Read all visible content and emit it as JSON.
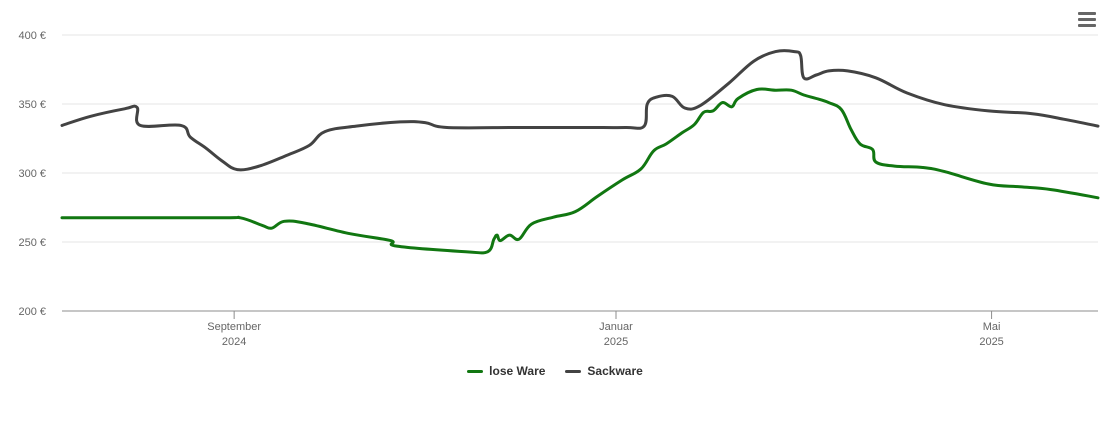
{
  "chart_data": {
    "type": "line",
    "y_unit": "€",
    "ylim": [
      200,
      400
    ],
    "y_ticks": [
      {
        "value": 400,
        "label": "400 €"
      },
      {
        "value": 350,
        "label": "350 €"
      },
      {
        "value": 300,
        "label": "300 €"
      },
      {
        "value": 250,
        "label": "250 €"
      },
      {
        "value": 200,
        "label": "200 €"
      }
    ],
    "x_range": [
      "2024-07-08",
      "2025-06-04"
    ],
    "x_ticks": [
      {
        "date": "2024-09-01",
        "line1": "September",
        "line2": "2024"
      },
      {
        "date": "2025-01-01",
        "line1": "Januar",
        "line2": "2025"
      },
      {
        "date": "2025-05-01",
        "line1": "Mai",
        "line2": "2025"
      }
    ],
    "grid": true,
    "legend_position": "bottom-center",
    "series": [
      {
        "name": "lose Ware",
        "color": "#117711",
        "points": [
          [
            "2024-07-08",
            267.5
          ],
          [
            "2024-08-27",
            267.5
          ],
          [
            "2024-09-03",
            267.5
          ],
          [
            "2024-09-10",
            262
          ],
          [
            "2024-09-13",
            260
          ],
          [
            "2024-09-17",
            265
          ],
          [
            "2024-09-24",
            263.5
          ],
          [
            "2024-10-08",
            256
          ],
          [
            "2024-10-21",
            251
          ],
          [
            "2024-10-23",
            247
          ],
          [
            "2024-11-14",
            243
          ],
          [
            "2024-11-21",
            243
          ],
          [
            "2024-11-23",
            252
          ],
          [
            "2024-11-24",
            255
          ],
          [
            "2024-11-25",
            251
          ],
          [
            "2024-11-28",
            255
          ],
          [
            "2024-12-01",
            252
          ],
          [
            "2024-12-05",
            263
          ],
          [
            "2024-12-12",
            268
          ],
          [
            "2024-12-19",
            272
          ],
          [
            "2024-12-26",
            283
          ],
          [
            "2025-01-03",
            295
          ],
          [
            "2025-01-09",
            303
          ],
          [
            "2025-01-13",
            316
          ],
          [
            "2025-01-17",
            321
          ],
          [
            "2025-01-22",
            329
          ],
          [
            "2025-01-26",
            335
          ],
          [
            "2025-01-29",
            344
          ],
          [
            "2025-02-01",
            345
          ],
          [
            "2025-02-04",
            351
          ],
          [
            "2025-02-07",
            348
          ],
          [
            "2025-02-09",
            354
          ],
          [
            "2025-02-15",
            360.5
          ],
          [
            "2025-02-21",
            360
          ],
          [
            "2025-02-26",
            360
          ],
          [
            "2025-03-02",
            356.5
          ],
          [
            "2025-03-06",
            354
          ],
          [
            "2025-03-10",
            351
          ],
          [
            "2025-03-14",
            346
          ],
          [
            "2025-03-17",
            332
          ],
          [
            "2025-03-20",
            321
          ],
          [
            "2025-03-24",
            317
          ],
          [
            "2025-03-25",
            308
          ],
          [
            "2025-03-31",
            305
          ],
          [
            "2025-04-09",
            304
          ],
          [
            "2025-04-16",
            301
          ],
          [
            "2025-04-30",
            292
          ],
          [
            "2025-05-10",
            290
          ],
          [
            "2025-05-20",
            288
          ],
          [
            "2025-06-04",
            282
          ]
        ]
      },
      {
        "name": "Sackware",
        "color": "#434343",
        "points": [
          [
            "2024-07-08",
            334.5
          ],
          [
            "2024-07-17",
            341
          ],
          [
            "2024-07-28",
            346.5
          ],
          [
            "2024-08-01",
            347.5
          ],
          [
            "2024-08-02",
            334.5
          ],
          [
            "2024-08-15",
            334.5
          ],
          [
            "2024-08-18",
            326
          ],
          [
            "2024-08-23",
            318
          ],
          [
            "2024-08-28",
            309
          ],
          [
            "2024-09-02",
            302.5
          ],
          [
            "2024-09-09",
            305
          ],
          [
            "2024-09-18",
            313
          ],
          [
            "2024-09-25",
            320
          ],
          [
            "2024-09-30",
            330
          ],
          [
            "2024-10-10",
            334
          ],
          [
            "2024-10-24",
            337
          ],
          [
            "2024-11-01",
            336.5
          ],
          [
            "2024-11-08",
            333
          ],
          [
            "2024-12-01",
            333
          ],
          [
            "2024-12-22",
            333
          ],
          [
            "2025-01-04",
            333
          ],
          [
            "2025-01-10",
            334
          ],
          [
            "2025-01-11",
            350
          ],
          [
            "2025-01-14",
            355
          ],
          [
            "2025-01-19",
            355.5
          ],
          [
            "2025-01-23",
            347
          ],
          [
            "2025-01-28",
            349
          ],
          [
            "2025-02-06",
            365
          ],
          [
            "2025-02-14",
            381
          ],
          [
            "2025-02-21",
            388
          ],
          [
            "2025-02-27",
            388
          ],
          [
            "2025-03-01",
            385
          ],
          [
            "2025-03-02",
            369
          ],
          [
            "2025-03-06",
            371
          ],
          [
            "2025-03-10",
            374
          ],
          [
            "2025-03-16",
            374
          ],
          [
            "2025-03-25",
            369
          ],
          [
            "2025-04-04",
            358
          ],
          [
            "2025-04-16",
            349.5
          ],
          [
            "2025-04-30",
            345
          ],
          [
            "2025-05-14",
            343
          ],
          [
            "2025-05-24",
            339
          ],
          [
            "2025-06-04",
            334
          ]
        ]
      }
    ]
  },
  "menu": {
    "icon": "hamburger-menu-icon"
  }
}
